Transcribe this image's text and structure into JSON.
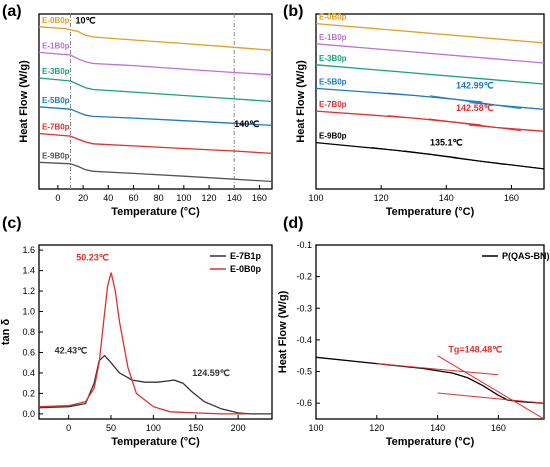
{
  "colors": {
    "orange": "#e0a020",
    "purple": "#c070d8",
    "green": "#1aa080",
    "blue": "#1f78c8",
    "red": "#e03030",
    "gray": "#555555",
    "black": "#000000",
    "dark": "#333333"
  },
  "chart_data": [
    {
      "panel": "(a)",
      "type": "line",
      "xlabel": "Temperature (°C)",
      "ylabel": "Heat Flow (W/g)",
      "xlim": [
        -15,
        170
      ],
      "xticks": [
        "0",
        "20",
        "40",
        "60",
        "80",
        "100",
        "120",
        "140",
        "160"
      ],
      "yticks": false,
      "grid": false,
      "series": [
        {
          "name": "E-0B0p",
          "color": "orange",
          "x": [
            -15,
            5,
            10,
            16,
            22,
            28,
            60,
            100,
            140,
            170
          ],
          "y": [
            9.2,
            9.12,
            9.06,
            8.98,
            8.8,
            8.72,
            8.58,
            8.42,
            8.24,
            8.1
          ]
        },
        {
          "name": "E-1B0p",
          "color": "purple",
          "x": [
            -15,
            10,
            16,
            22,
            28,
            60,
            100,
            140,
            170
          ],
          "y": [
            8.0,
            7.88,
            7.7,
            7.56,
            7.48,
            7.38,
            7.22,
            7.06,
            6.95
          ]
        },
        {
          "name": "E-3B0p",
          "color": "green",
          "x": [
            -15,
            10,
            16,
            22,
            28,
            60,
            100,
            140,
            170
          ],
          "y": [
            6.8,
            6.66,
            6.5,
            6.34,
            6.26,
            6.14,
            5.98,
            5.82,
            5.7
          ]
        },
        {
          "name": "E-5B0p",
          "color": "blue",
          "x": [
            -15,
            10,
            16,
            22,
            28,
            60,
            100,
            140,
            170
          ],
          "y": [
            5.45,
            5.34,
            5.2,
            5.06,
            5.0,
            4.92,
            4.8,
            4.68,
            4.58
          ]
        },
        {
          "name": "E-7B0p",
          "color": "red",
          "x": [
            -15,
            10,
            16,
            22,
            28,
            60,
            100,
            140,
            170
          ],
          "y": [
            4.2,
            4.08,
            3.94,
            3.8,
            3.72,
            3.62,
            3.5,
            3.38,
            3.27
          ]
        },
        {
          "name": "E-9B0p",
          "color": "gray",
          "x": [
            -15,
            10,
            16,
            22,
            28,
            60,
            100,
            140,
            170
          ],
          "y": [
            2.85,
            2.78,
            2.66,
            2.5,
            2.43,
            2.33,
            2.2,
            2.06,
            1.95
          ]
        }
      ],
      "ylim": [
        1.6,
        9.8
      ],
      "vlines": [
        10,
        140
      ],
      "annotations": [
        {
          "text": "10℃",
          "x": 14,
          "y": 9.35
        },
        {
          "text": "140℃",
          "x": 140,
          "y": 4.5
        }
      ]
    },
    {
      "panel": "(b)",
      "type": "line",
      "xlabel": "Temperature (°C)",
      "ylabel": "Heat Flow (W/g)",
      "xlim": [
        100,
        170
      ],
      "xticks": [
        "100",
        "120",
        "140",
        "160"
      ],
      "yticks": false,
      "grid": false,
      "ylim": [
        0,
        10
      ],
      "series": [
        {
          "name": "E-0B0p",
          "color": "orange",
          "x": [
            100,
            170
          ],
          "y": [
            9.45,
            8.35
          ]
        },
        {
          "name": "E-1B0p",
          "color": "purple",
          "x": [
            100,
            170
          ],
          "y": [
            8.3,
            7.2
          ]
        },
        {
          "name": "E-3B0p",
          "color": "green",
          "x": [
            100,
            170
          ],
          "y": [
            7.1,
            6.0
          ]
        },
        {
          "name": "E-5B0p",
          "color": "blue",
          "x": [
            100,
            130,
            143,
            155,
            170
          ],
          "y": [
            5.75,
            5.35,
            5.12,
            4.8,
            4.55
          ]
        },
        {
          "name": "E-7B0p",
          "color": "red",
          "x": [
            100,
            130,
            142.58,
            155,
            170
          ],
          "y": [
            4.45,
            4.05,
            3.82,
            3.52,
            3.3
          ]
        },
        {
          "name": "E-9B0p",
          "color": "black",
          "x": [
            100,
            125,
            135.1,
            150,
            170
          ],
          "y": [
            2.65,
            2.2,
            1.98,
            1.6,
            1.15
          ]
        }
      ],
      "tangents": [
        {
          "series": "E-5B0p",
          "tg_label": "142.99℃",
          "label_x": 143,
          "label_y": 5.75
        },
        {
          "series": "E-7B0p",
          "tg_label": "142.58℃",
          "label_x": 143,
          "label_y": 4.45
        },
        {
          "series": "E-9B0p",
          "tg_label": "135.1℃",
          "label_x": 135,
          "label_y": 2.5
        }
      ]
    },
    {
      "panel": "(c)",
      "type": "line",
      "xlabel": "Temperature (°C)",
      "ylabel": "tan δ",
      "xlim": [
        -35,
        240
      ],
      "xticks": [
        "0",
        "50",
        "100",
        "150",
        "200"
      ],
      "ylim": [
        -0.05,
        1.65
      ],
      "yticks": [
        "0.0",
        "0.2",
        "0.4",
        "0.6",
        "0.8",
        "1.0",
        "1.2",
        "1.4",
        "1.6"
      ],
      "legend_position": "top-right",
      "series": [
        {
          "name": "E-7B1p",
          "color": "dark",
          "x": [
            -35,
            0,
            20,
            30,
            36,
            42.43,
            50,
            60,
            75,
            90,
            105,
            115,
            124.59,
            135,
            145,
            160,
            180,
            200,
            215,
            240
          ],
          "y": [
            0.06,
            0.07,
            0.1,
            0.3,
            0.52,
            0.57,
            0.5,
            0.4,
            0.33,
            0.31,
            0.31,
            0.32,
            0.33,
            0.3,
            0.22,
            0.12,
            0.05,
            0.01,
            0.0,
            0.0
          ]
        },
        {
          "name": "E-0B0p",
          "color": "red",
          "x": [
            -35,
            0,
            20,
            30,
            36,
            42,
            46,
            50.23,
            55,
            60,
            70,
            80,
            100,
            120,
            150,
            180,
            210
          ],
          "y": [
            0.07,
            0.08,
            0.12,
            0.25,
            0.5,
            0.95,
            1.25,
            1.38,
            1.2,
            0.9,
            0.45,
            0.2,
            0.07,
            0.02,
            0.01,
            0.0,
            0.0
          ]
        }
      ],
      "annotations": [
        {
          "text": "50.23℃",
          "x": 50.23,
          "y": 1.38,
          "color": "red"
        },
        {
          "text": "42.43℃",
          "x": 42.43,
          "y": 0.57,
          "color": "dark"
        },
        {
          "text": "124.59℃",
          "x": 124.59,
          "y": 0.33,
          "color": "dark"
        }
      ]
    },
    {
      "panel": "(d)",
      "type": "line",
      "xlabel": "Temperature (°C)",
      "ylabel": "Heat Flow (W/g)",
      "xlim": [
        100,
        175
      ],
      "xticks": [
        "100",
        "120",
        "140",
        "160"
      ],
      "ylim": [
        -0.65,
        -0.1
      ],
      "yticks": [
        "-0.6",
        "-0.5",
        "-0.4",
        "-0.3",
        "-0.2",
        "-0.1"
      ],
      "legend_position": "top-right",
      "series": [
        {
          "name": "P(QAS-BN)",
          "color": "black",
          "x": [
            100,
            120,
            135,
            145,
            150,
            155,
            160,
            163,
            167,
            175
          ],
          "y": [
            -0.455,
            -0.475,
            -0.49,
            -0.505,
            -0.52,
            -0.545,
            -0.575,
            -0.59,
            -0.595,
            -0.6
          ]
        }
      ],
      "tangent_lines": [
        {
          "x": [
            120,
            160
          ],
          "y": [
            -0.475,
            -0.51
          ]
        },
        {
          "x": [
            140,
            175
          ],
          "y": [
            -0.45,
            -0.65
          ]
        },
        {
          "x": [
            140,
            175
          ],
          "y": [
            -0.568,
            -0.6
          ]
        }
      ],
      "annotations": [
        {
          "text": "Tg=148.48℃",
          "x": 148.48,
          "y": -0.44,
          "color": "red"
        }
      ]
    }
  ]
}
